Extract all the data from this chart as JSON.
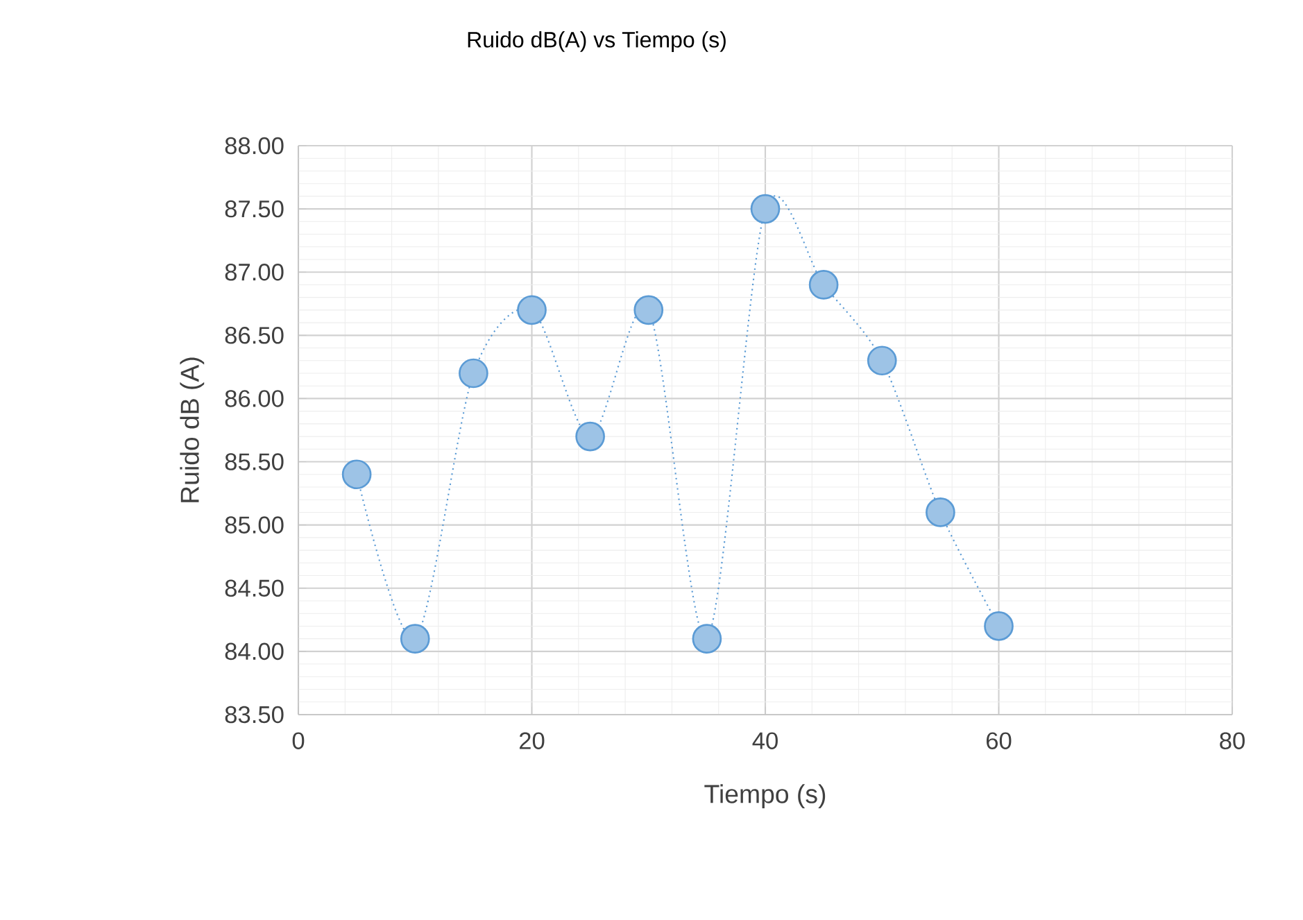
{
  "chart_data": {
    "type": "line",
    "title": "Ruido dB(A) vs Tiempo (s)",
    "xlabel": "Tiempo (s)",
    "ylabel": "Ruido dB (A)",
    "x": [
      5,
      10,
      15,
      20,
      25,
      30,
      35,
      40,
      45,
      50,
      55,
      60
    ],
    "series": [
      {
        "color": "#5b9bd5",
        "values": [
          85.4,
          84.1,
          86.2,
          86.7,
          85.7,
          86.7,
          84.1,
          87.5,
          86.9,
          86.3,
          85.1,
          84.2
        ]
      }
    ],
    "xlim": [
      0,
      80
    ],
    "xticks": [
      0,
      20,
      40,
      60,
      80
    ],
    "ylim": [
      83.5,
      88.0
    ],
    "yticks": [
      {
        "value": 83.5,
        "label": "83.50"
      },
      {
        "value": 84.0,
        "label": "84.00"
      },
      {
        "value": 84.5,
        "label": "84.50"
      },
      {
        "value": 85.0,
        "label": "85.00"
      },
      {
        "value": 85.5,
        "label": "85.50"
      },
      {
        "value": 86.0,
        "label": "86.00"
      },
      {
        "value": 86.5,
        "label": "86.50"
      },
      {
        "value": 87.0,
        "label": "87.00"
      },
      {
        "value": 87.5,
        "label": "87.50"
      },
      {
        "value": 88.0,
        "label": "88.00"
      }
    ],
    "grid": true,
    "marker": "circle",
    "line_style": "dotted"
  }
}
